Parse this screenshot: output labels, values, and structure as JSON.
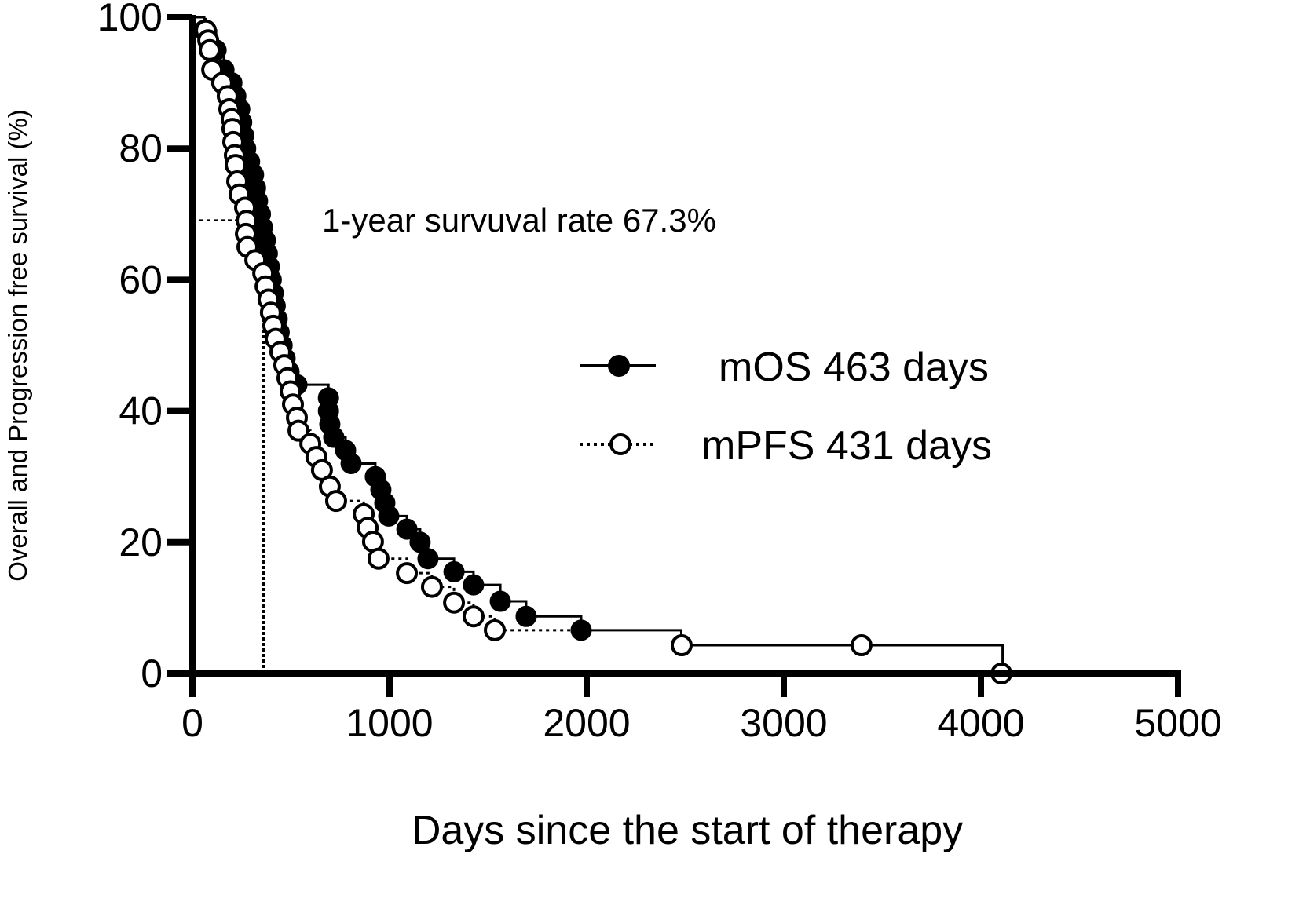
{
  "chart_data": {
    "type": "line",
    "subtype": "kaplan-meier",
    "xlabel": "Days since the start of therapy",
    "ylabel": "Overall and Progression free survival (%)",
    "xlim": [
      0,
      5000
    ],
    "ylim": [
      0,
      100
    ],
    "xticks": [
      "0",
      "1000",
      "2000",
      "3000",
      "4000",
      "5000"
    ],
    "yticks": [
      "0",
      "20",
      "40",
      "60",
      "80",
      "100"
    ],
    "grid": false,
    "legend_position": "right-middle",
    "annotation": "1-year survuval rate 67.3%",
    "reference_lines": {
      "horizontal_pct": 69.1,
      "horizontal_to_day": 300,
      "vertical_day": 359,
      "vertical_to_pct": 60
    },
    "series": [
      {
        "name": "mOS 463 days",
        "marker": "filled-circle",
        "line": "solid",
        "points": [
          [
            60,
            98
          ],
          [
            120,
            95
          ],
          [
            160,
            92
          ],
          [
            200,
            90
          ],
          [
            220,
            88
          ],
          [
            240,
            86
          ],
          [
            250,
            84
          ],
          [
            260,
            82
          ],
          [
            270,
            80
          ],
          [
            290,
            78
          ],
          [
            310,
            76
          ],
          [
            320,
            74
          ],
          [
            330,
            72
          ],
          [
            345,
            70
          ],
          [
            355,
            68
          ],
          [
            370,
            66
          ],
          [
            380,
            64
          ],
          [
            390,
            62
          ],
          [
            400,
            60
          ],
          [
            410,
            58
          ],
          [
            420,
            56
          ],
          [
            430,
            54
          ],
          [
            440,
            52
          ],
          [
            455,
            50
          ],
          [
            470,
            48
          ],
          [
            490,
            46
          ],
          [
            530,
            44
          ],
          [
            690,
            42
          ],
          [
            690,
            40
          ],
          [
            697,
            38
          ],
          [
            717,
            36
          ],
          [
            777,
            34
          ],
          [
            805,
            32
          ],
          [
            928,
            30
          ],
          [
            956,
            28
          ],
          [
            976,
            26
          ],
          [
            996,
            24
          ],
          [
            1088,
            22
          ],
          [
            1155,
            20
          ],
          [
            1195,
            17.5
          ],
          [
            1327,
            15.5
          ],
          [
            1426,
            13.5
          ],
          [
            1562,
            11
          ],
          [
            1693,
            8.7
          ],
          [
            1972,
            6.6
          ]
        ],
        "tail_steps": [
          [
            2480,
            4.3
          ],
          [
            4110,
            0
          ]
        ]
      },
      {
        "name": "mPFS 431 days",
        "marker": "open-circle",
        "line": "dotted",
        "points": [
          [
            68,
            98
          ],
          [
            80,
            96.5
          ],
          [
            88,
            95
          ],
          [
            100,
            92
          ],
          [
            151,
            90
          ],
          [
            179,
            88
          ],
          [
            187,
            86
          ],
          [
            199,
            84.5
          ],
          [
            203,
            83
          ],
          [
            207,
            81
          ],
          [
            215,
            79
          ],
          [
            219,
            77.5
          ],
          [
            227,
            75
          ],
          [
            239,
            73
          ],
          [
            267,
            71
          ],
          [
            275,
            69
          ],
          [
            271,
            67
          ],
          [
            279,
            65
          ],
          [
            319,
            63
          ],
          [
            359,
            61
          ],
          [
            371,
            59
          ],
          [
            386,
            57
          ],
          [
            398,
            55
          ],
          [
            410,
            53
          ],
          [
            422,
            51
          ],
          [
            446,
            49
          ],
          [
            466,
            47
          ],
          [
            482,
            45
          ],
          [
            498,
            43
          ],
          [
            510,
            41
          ],
          [
            530,
            39
          ],
          [
            538,
            37
          ],
          [
            598,
            35
          ],
          [
            629,
            33
          ],
          [
            657,
            31
          ],
          [
            697,
            28.5
          ],
          [
            729,
            26.3
          ],
          [
            869,
            24.3
          ],
          [
            889,
            22.2
          ],
          [
            916,
            20.1
          ],
          [
            944,
            17.5
          ],
          [
            1088,
            15.3
          ],
          [
            1215,
            13.2
          ],
          [
            1327,
            10.8
          ],
          [
            1426,
            8.7
          ],
          [
            1534,
            6.6
          ]
        ],
        "line_end_day": 1972,
        "extra_points": [
          [
            2482,
            4.3
          ],
          [
            3394,
            4.3
          ],
          [
            4104,
            0
          ]
        ]
      }
    ]
  }
}
